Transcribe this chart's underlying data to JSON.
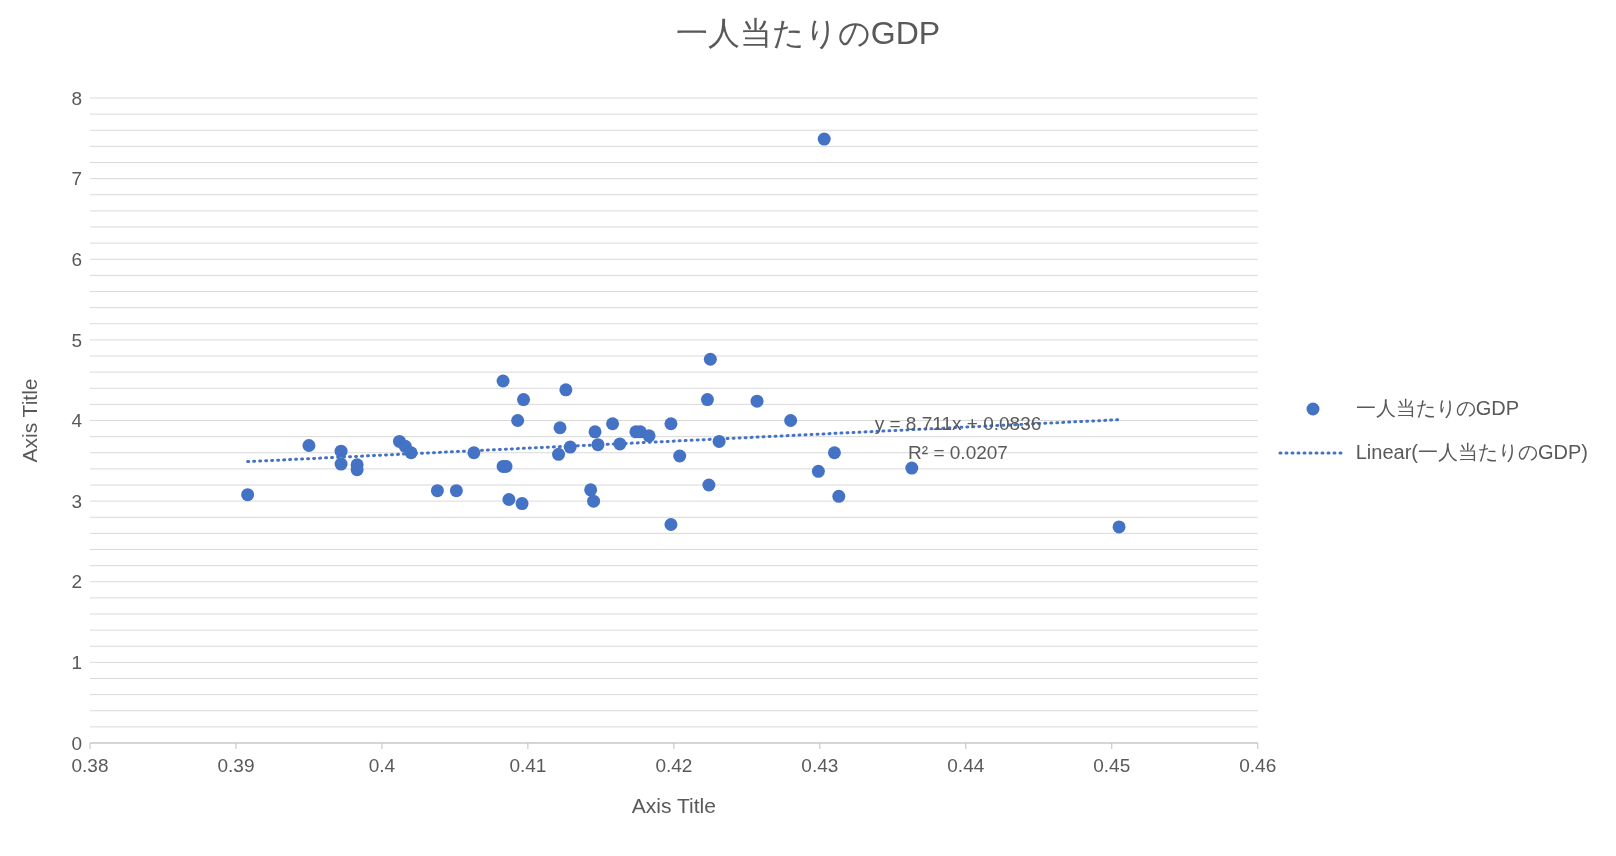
{
  "chart_data": {
    "type": "scatter",
    "title": "一人当たりのGDP",
    "xlabel": "Axis Title",
    "ylabel": "Axis Title",
    "xlim": [
      0.38,
      0.46
    ],
    "xticks": [
      0.38,
      0.39,
      0.4,
      0.41,
      0.42,
      0.43,
      0.44,
      0.45,
      0.46
    ],
    "ylim": [
      0,
      8
    ],
    "yticks": [
      0,
      {
        "value": 0.2,
        "label": null
      },
      {
        "value": 0.4,
        "label": null
      },
      {
        "value": 0.6,
        "label": null
      },
      {
        "value": 0.8,
        "label": null
      },
      1,
      {
        "value": 1.2,
        "label": null
      },
      {
        "value": 1.4,
        "label": null
      },
      {
        "value": 1.6,
        "label": null
      },
      {
        "value": 1.8,
        "label": null
      },
      2,
      {
        "value": 2.2,
        "label": null
      },
      {
        "value": 2.4,
        "label": null
      },
      {
        "value": 2.6,
        "label": null
      },
      {
        "value": 2.8,
        "label": null
      },
      3,
      {
        "value": 3.2,
        "label": null
      },
      {
        "value": 3.4,
        "label": null
      },
      {
        "value": 3.6,
        "label": null
      },
      {
        "value": 3.8,
        "label": null
      },
      4,
      {
        "value": 4.2,
        "label": null
      },
      {
        "value": 4.4,
        "label": null
      },
      {
        "value": 4.6,
        "label": null
      },
      {
        "value": 4.8,
        "label": null
      },
      5,
      {
        "value": 5.2,
        "label": null
      },
      {
        "value": 5.4,
        "label": null
      },
      {
        "value": 5.6,
        "label": null
      },
      {
        "value": 5.8,
        "label": null
      },
      6,
      {
        "value": 6.2,
        "label": null
      },
      {
        "value": 6.4,
        "label": null
      },
      {
        "value": 6.6,
        "label": null
      },
      {
        "value": 6.8,
        "label": null
      },
      7,
      {
        "value": 7.2,
        "label": null
      },
      {
        "value": 7.4,
        "label": null
      },
      {
        "value": 7.6,
        "label": null
      },
      {
        "value": 7.8,
        "label": null
      },
      8
    ],
    "grid": "y",
    "legend": "right",
    "marker": "circle",
    "annotations": [
      "y = 8.711x + 0.0836",
      "R² = 0.0207"
    ],
    "series": [
      {
        "name": "一人当たりのGDP",
        "type": "scatter",
        "color": "#4472c4",
        "x": [
          0.3908,
          0.395,
          0.3972,
          0.3972,
          0.3983,
          0.3983,
          0.4012,
          0.4016,
          0.402,
          0.4038,
          0.4051,
          0.4063,
          0.4083,
          0.4083,
          0.4085,
          0.4087,
          0.4093,
          0.4097,
          0.4096,
          0.4126,
          0.4122,
          0.4121,
          0.4129,
          0.4146,
          0.4148,
          0.4143,
          0.4145,
          0.4158,
          0.4163,
          0.4174,
          0.4177,
          0.4183,
          0.4198,
          0.4198,
          0.4204,
          0.4223,
          0.4225,
          0.4224,
          0.4231,
          0.4257,
          0.428,
          0.4303,
          0.4299,
          0.431,
          0.4313,
          0.4363,
          0.4505
        ],
        "values": [
          3.08,
          3.69,
          3.62,
          3.46,
          3.45,
          3.39,
          3.74,
          3.68,
          3.6,
          3.13,
          3.13,
          3.6,
          4.49,
          3.43,
          3.43,
          3.02,
          4.0,
          4.26,
          2.97,
          4.38,
          3.91,
          3.58,
          3.67,
          3.86,
          3.7,
          3.14,
          3.0,
          3.96,
          3.71,
          3.86,
          3.86,
          3.81,
          3.96,
          2.71,
          3.56,
          4.26,
          4.76,
          3.2,
          3.74,
          4.24,
          4.0,
          7.49,
          3.37,
          3.6,
          3.06,
          3.41,
          2.68
        ]
      },
      {
        "name": "Linear(一人当たりのGDP)",
        "type": "line",
        "color": "#4472c4",
        "line_style": "dotted",
        "marker": "none",
        "x": [
          0.3908,
          0.4505
        ],
        "values": [
          3.49,
          4.01
        ]
      }
    ]
  }
}
